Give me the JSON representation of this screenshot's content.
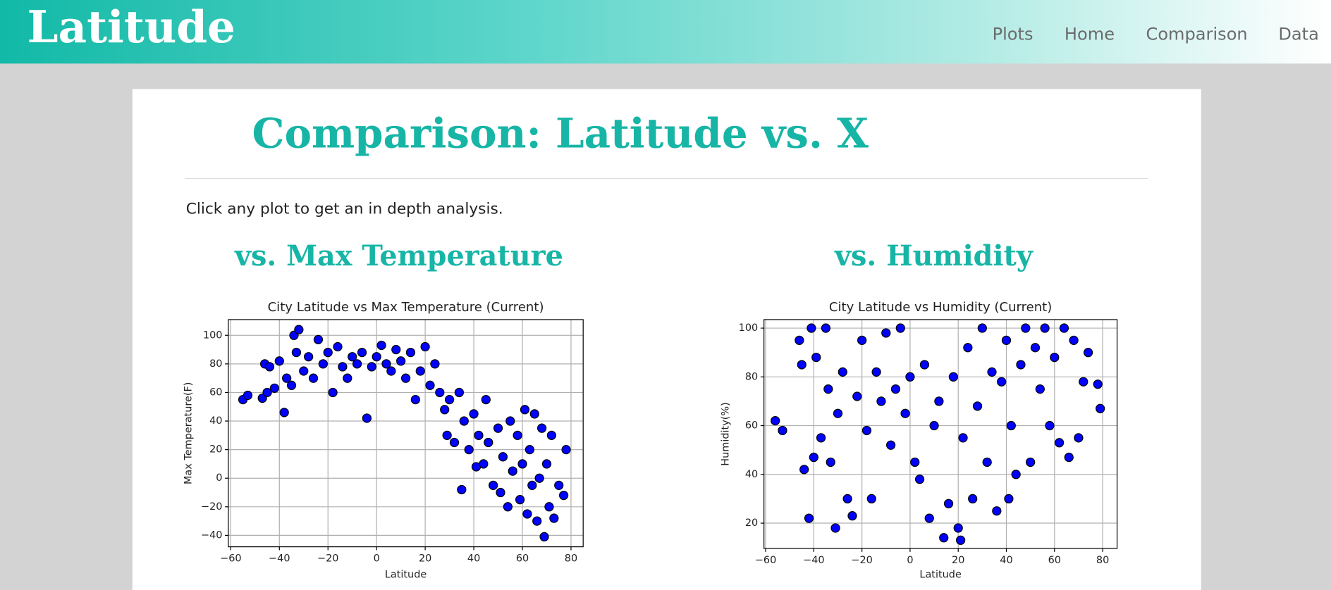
{
  "navbar": {
    "brand": "Latitude",
    "links": [
      "Plots",
      "Home",
      "Comparison",
      "Data"
    ]
  },
  "header": {
    "title": "Comparison: Latitude vs. X",
    "instruction": "Click any plot to get an in depth analysis."
  },
  "chart_data": [
    {
      "type": "scatter",
      "heading": "vs. Max Temperature",
      "title": "City Latitude vs Max Temperature (Current)",
      "x_label": "Latitude",
      "y_label": "Max Temperature(F)",
      "color": "#0000ff",
      "grid": true,
      "xlim": [
        -61,
        85
      ],
      "ylim": [
        -48,
        111
      ],
      "xticks": [
        {
          "value": -60,
          "label": "−60"
        },
        {
          "value": -40,
          "label": "−40"
        },
        {
          "value": -20,
          "label": "−20"
        },
        0,
        20,
        40,
        60,
        80
      ],
      "yticks": [
        {
          "value": -40,
          "label": "−40"
        },
        {
          "value": -20,
          "label": "−20"
        },
        0,
        20,
        40,
        60,
        80,
        100
      ],
      "x": [
        -55,
        -53,
        -47,
        -46,
        -45,
        -44,
        -42,
        -40,
        -38,
        -37,
        -35,
        -34,
        -33,
        -32,
        -30,
        -28,
        -26,
        -24,
        -22,
        -20,
        -18,
        -16,
        -14,
        -12,
        -10,
        -8,
        -6,
        -4,
        -2,
        0,
        2,
        4,
        6,
        8,
        10,
        12,
        14,
        16,
        18,
        20,
        22,
        24,
        26,
        28,
        29,
        30,
        32,
        34,
        35,
        36,
        38,
        40,
        41,
        42,
        44,
        45,
        46,
        48,
        50,
        51,
        52,
        54,
        55,
        56,
        58,
        59,
        60,
        61,
        62,
        63,
        64,
        65,
        66,
        67,
        68,
        69,
        70,
        71,
        72,
        73,
        75,
        77,
        78
      ],
      "values": [
        55,
        58,
        56,
        80,
        60,
        78,
        63,
        82,
        46,
        70,
        65,
        100,
        88,
        104,
        75,
        85,
        70,
        97,
        80,
        88,
        60,
        92,
        78,
        70,
        85,
        80,
        88,
        42,
        78,
        85,
        93,
        80,
        75,
        90,
        82,
        70,
        88,
        55,
        75,
        92,
        65,
        80,
        60,
        48,
        30,
        55,
        25,
        60,
        -8,
        40,
        20,
        45,
        8,
        30,
        10,
        55,
        25,
        -5,
        35,
        -10,
        15,
        -20,
        40,
        5,
        30,
        -15,
        10,
        48,
        -25,
        20,
        -5,
        45,
        -30,
        0,
        35,
        -41,
        10,
        -20,
        30,
        -28,
        -5,
        -12,
        20
      ]
    },
    {
      "type": "scatter",
      "heading": "vs. Humidity",
      "title": "City Latitude vs Humidity (Current)",
      "x_label": "Latitude",
      "y_label": "Humidity(%)",
      "color": "#0000ff",
      "grid": true,
      "xlim": [
        -60.7,
        86
      ],
      "ylim": [
        9.6,
        103.5
      ],
      "xticks": [
        {
          "value": -60,
          "label": "−60"
        },
        {
          "value": -40,
          "label": "−40"
        },
        {
          "value": -20,
          "label": "−20"
        },
        0,
        20,
        40,
        60,
        80
      ],
      "yticks": [
        20,
        40,
        60,
        80,
        100
      ],
      "x": [
        -56,
        -53,
        -46,
        -45,
        -44,
        -42,
        -41,
        -40,
        -39,
        -37,
        -35,
        -34,
        -33,
        -31,
        -30,
        -28,
        -26,
        -24,
        -22,
        -20,
        -18,
        -16,
        -14,
        -12,
        -10,
        -8,
        -6,
        -4,
        -2,
        0,
        2,
        4,
        6,
        8,
        10,
        12,
        14,
        16,
        18,
        20,
        21,
        22,
        24,
        26,
        28,
        30,
        32,
        34,
        36,
        38,
        40,
        41,
        42,
        44,
        46,
        48,
        50,
        52,
        54,
        56,
        58,
        60,
        62,
        64,
        66,
        68,
        70,
        72,
        74,
        78,
        79
      ],
      "values": [
        62,
        58,
        95,
        85,
        42,
        22,
        100,
        47,
        88,
        55,
        100,
        75,
        45,
        18,
        65,
        82,
        30,
        23,
        72,
        95,
        58,
        30,
        82,
        70,
        98,
        52,
        75,
        100,
        65,
        80,
        45,
        38,
        85,
        22,
        60,
        70,
        14,
        28,
        80,
        18,
        13,
        55,
        92,
        30,
        68,
        100,
        45,
        82,
        25,
        78,
        95,
        30,
        60,
        40,
        85,
        100,
        45,
        92,
        75,
        100,
        60,
        88,
        53,
        100,
        47,
        95,
        55,
        78,
        90,
        77,
        67
      ]
    }
  ]
}
